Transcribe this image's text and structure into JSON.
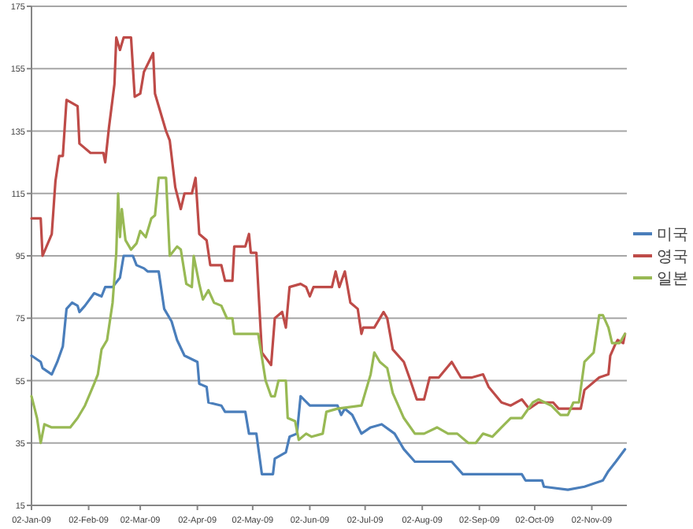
{
  "chart_data": {
    "type": "line",
    "grid": "y",
    "legend": "right",
    "marker": "none",
    "line_style": "solid",
    "xlim": [
      "2009-01-02",
      "2009-11-21"
    ],
    "ylim": [
      15,
      175
    ],
    "yticks": [
      15,
      35,
      55,
      75,
      95,
      115,
      135,
      155,
      175
    ],
    "xticks": [
      {
        "value": "2009-01-02",
        "label": "02-Jan-09"
      },
      {
        "value": "2009-02-02",
        "label": "02-Feb-09"
      },
      {
        "value": "2009-03-02",
        "label": "02-Mar-09"
      },
      {
        "value": "2009-04-02",
        "label": "02-Apr-09"
      },
      {
        "value": "2009-05-02",
        "label": "02-May-09"
      },
      {
        "value": "2009-06-02",
        "label": "02-Jun-09"
      },
      {
        "value": "2009-07-02",
        "label": "02-Jul-09"
      },
      {
        "value": "2009-08-02",
        "label": "02-Aug-09"
      },
      {
        "value": "2009-09-02",
        "label": "02-Sep-09"
      },
      {
        "value": "2009-10-02",
        "label": "02-Oct-09"
      },
      {
        "value": "2009-11-02",
        "label": "02-Nov-09"
      }
    ],
    "series": [
      {
        "name": "미국",
        "color": "#4a7ebb",
        "x": [
          "2009-01-02",
          "2009-01-07",
          "2009-01-08",
          "2009-01-13",
          "2009-01-16",
          "2009-01-19",
          "2009-01-21",
          "2009-01-24",
          "2009-01-27",
          "2009-01-28",
          "2009-01-31",
          "2009-02-05",
          "2009-02-09",
          "2009-02-11",
          "2009-02-15",
          "2009-02-19",
          "2009-02-21",
          "2009-02-26",
          "2009-02-28",
          "2009-03-04",
          "2009-03-06",
          "2009-03-12",
          "2009-03-15",
          "2009-03-19",
          "2009-03-22",
          "2009-03-26",
          "2009-04-02",
          "2009-04-03",
          "2009-04-07",
          "2009-04-08",
          "2009-04-15",
          "2009-04-17",
          "2009-04-28",
          "2009-04-30",
          "2009-05-04",
          "2009-05-07",
          "2009-05-13",
          "2009-05-14",
          "2009-05-20",
          "2009-05-22",
          "2009-05-26",
          "2009-05-28",
          "2009-06-02",
          "2009-06-17",
          "2009-06-19",
          "2009-06-21",
          "2009-06-25",
          "2009-06-30",
          "2009-07-05",
          "2009-07-11",
          "2009-07-18",
          "2009-07-23",
          "2009-07-29",
          "2009-08-18",
          "2009-08-24",
          "2009-09-25",
          "2009-09-27",
          "2009-10-06",
          "2009-10-07",
          "2009-10-20",
          "2009-10-29",
          "2009-11-03",
          "2009-11-08",
          "2009-11-11",
          "2009-11-15",
          "2009-11-20"
        ],
        "values": [
          63,
          61,
          59,
          57,
          61,
          66,
          78,
          80,
          79,
          77,
          79,
          83,
          82,
          85,
          85,
          88,
          95,
          95,
          92,
          91,
          90,
          90,
          78,
          74,
          68,
          63,
          61,
          54,
          53,
          48,
          47,
          45,
          45,
          38,
          38,
          25,
          25,
          30,
          32,
          37,
          38,
          50,
          47,
          47,
          44,
          46,
          44,
          38,
          40,
          41,
          38,
          33,
          29,
          29,
          25,
          25,
          23,
          23,
          21,
          20,
          21,
          22,
          23,
          26,
          29,
          33
        ]
      },
      {
        "name": "영국",
        "color": "#be4b48",
        "x": [
          "2009-01-02",
          "2009-01-07",
          "2009-01-08",
          "2009-01-13",
          "2009-01-15",
          "2009-01-17",
          "2009-01-19",
          "2009-01-21",
          "2009-01-27",
          "2009-01-28",
          "2009-02-03",
          "2009-02-10",
          "2009-02-11",
          "2009-02-13",
          "2009-02-16",
          "2009-02-17",
          "2009-02-19",
          "2009-02-21",
          "2009-02-25",
          "2009-02-27",
          "2009-03-02",
          "2009-03-04",
          "2009-03-09",
          "2009-03-10",
          "2009-03-16",
          "2009-03-18",
          "2009-03-21",
          "2009-03-24",
          "2009-03-26",
          "2009-03-30",
          "2009-04-01",
          "2009-04-03",
          "2009-04-07",
          "2009-04-09",
          "2009-04-15",
          "2009-04-17",
          "2009-04-21",
          "2009-04-22",
          "2009-04-28",
          "2009-04-30",
          "2009-05-01",
          "2009-05-04",
          "2009-05-07",
          "2009-05-12",
          "2009-05-14",
          "2009-05-18",
          "2009-05-20",
          "2009-05-22",
          "2009-05-28",
          "2009-05-31",
          "2009-06-02",
          "2009-06-04",
          "2009-06-14",
          "2009-06-16",
          "2009-06-18",
          "2009-06-21",
          "2009-06-24",
          "2009-06-28",
          "2009-06-30",
          "2009-07-01",
          "2009-07-07",
          "2009-07-12",
          "2009-07-14",
          "2009-07-17",
          "2009-07-23",
          "2009-07-26",
          "2009-07-30",
          "2009-08-03",
          "2009-08-06",
          "2009-08-11",
          "2009-08-18",
          "2009-08-23",
          "2009-08-29",
          "2009-09-04",
          "2009-09-07",
          "2009-09-14",
          "2009-09-19",
          "2009-09-25",
          "2009-09-29",
          "2009-10-04",
          "2009-10-12",
          "2009-10-15",
          "2009-10-27",
          "2009-10-29",
          "2009-11-06",
          "2009-11-11",
          "2009-11-12",
          "2009-11-15",
          "2009-11-16",
          "2009-11-19",
          "2009-11-20"
        ],
        "values": [
          107,
          107,
          95,
          102,
          119,
          127,
          127,
          145,
          143,
          131,
          128,
          128,
          125,
          136,
          150,
          165,
          161,
          165,
          165,
          146,
          147,
          154,
          160,
          147,
          135,
          132,
          117,
          110,
          115,
          115,
          120,
          102,
          100,
          92,
          92,
          87,
          87,
          98,
          98,
          102,
          96,
          96,
          64,
          60,
          75,
          77,
          72,
          85,
          86,
          85,
          82,
          85,
          85,
          90,
          85,
          90,
          80,
          78,
          70,
          72,
          72,
          77,
          75,
          65,
          61,
          56,
          49,
          49,
          56,
          56,
          61,
          56,
          56,
          57,
          53,
          48,
          47,
          49,
          46,
          48,
          48,
          46,
          46,
          52,
          56,
          57,
          63,
          67,
          68,
          67,
          70
        ]
      },
      {
        "name": "일본",
        "color": "#98b954",
        "x": [
          "2009-01-02",
          "2009-01-05",
          "2009-01-07",
          "2009-01-09",
          "2009-01-13",
          "2009-01-23",
          "2009-01-27",
          "2009-01-31",
          "2009-02-05",
          "2009-02-07",
          "2009-02-09",
          "2009-02-12",
          "2009-02-15",
          "2009-02-17",
          "2009-02-18",
          "2009-02-19",
          "2009-02-20",
          "2009-02-22",
          "2009-02-25",
          "2009-02-28",
          "2009-03-02",
          "2009-03-05",
          "2009-03-08",
          "2009-03-10",
          "2009-03-12",
          "2009-03-16",
          "2009-03-18",
          "2009-03-22",
          "2009-03-24",
          "2009-03-27",
          "2009-03-30",
          "2009-03-31",
          "2009-04-03",
          "2009-04-05",
          "2009-04-08",
          "2009-04-11",
          "2009-04-15",
          "2009-04-18",
          "2009-04-21",
          "2009-04-22",
          "2009-05-05",
          "2009-05-09",
          "2009-05-12",
          "2009-05-14",
          "2009-05-16",
          "2009-05-20",
          "2009-05-21",
          "2009-05-25",
          "2009-05-27",
          "2009-05-31",
          "2009-06-03",
          "2009-06-09",
          "2009-06-11",
          "2009-06-17",
          "2009-06-30",
          "2009-07-05",
          "2009-07-07",
          "2009-07-10",
          "2009-07-14",
          "2009-07-17",
          "2009-07-23",
          "2009-07-29",
          "2009-08-03",
          "2009-08-10",
          "2009-08-16",
          "2009-08-21",
          "2009-08-27",
          "2009-08-31",
          "2009-09-04",
          "2009-09-09",
          "2009-09-14",
          "2009-09-19",
          "2009-09-25",
          "2009-10-01",
          "2009-10-04",
          "2009-10-11",
          "2009-10-16",
          "2009-10-20",
          "2009-10-23",
          "2009-10-26",
          "2009-10-29",
          "2009-11-03",
          "2009-11-06",
          "2009-11-08",
          "2009-11-11",
          "2009-11-13",
          "2009-11-17",
          "2009-11-20"
        ],
        "values": [
          50,
          43,
          35,
          41,
          40,
          40,
          43,
          47,
          54,
          57,
          65,
          68,
          80,
          96,
          115,
          101,
          110,
          100,
          97,
          99,
          103,
          101,
          107,
          108,
          120,
          120,
          95,
          98,
          97,
          86,
          85,
          95,
          86,
          81,
          84,
          80,
          79,
          75,
          75,
          70,
          70,
          55,
          50,
          50,
          55,
          55,
          43,
          42,
          36,
          38,
          37,
          38,
          45,
          46,
          47,
          57,
          64,
          61,
          59,
          51,
          43,
          38,
          38,
          40,
          38,
          38,
          35,
          35,
          38,
          37,
          40,
          43,
          43,
          48,
          49,
          47,
          44,
          44,
          48,
          48,
          61,
          64,
          76,
          76,
          72,
          67,
          67,
          70
        ]
      }
    ]
  }
}
